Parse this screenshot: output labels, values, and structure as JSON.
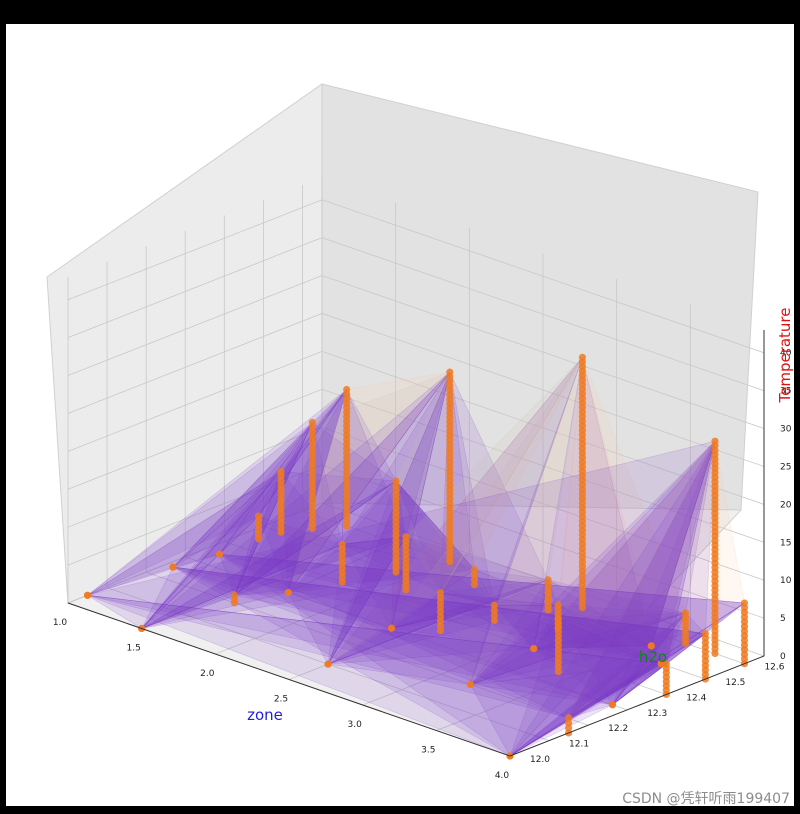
{
  "chart_data": {
    "type": "3d-scatter-surface",
    "x_axis": {
      "label": "zone",
      "ticks": [
        "1.0",
        "1.5",
        "2.0",
        "2.5",
        "3.0",
        "3.5",
        "4.0"
      ],
      "range": [
        1.0,
        4.0
      ],
      "color": "#1f1fdc"
    },
    "y_axis": {
      "label": "h2o",
      "ticks": [
        "12.0",
        "12.1",
        "12.2",
        "12.3",
        "12.4",
        "12.5",
        "12.6"
      ],
      "range": [
        12.0,
        12.65
      ],
      "color": "#0a8a0a"
    },
    "z_axis": {
      "label": "Temperature",
      "ticks": [
        "0",
        "5",
        "10",
        "15",
        "20",
        "25",
        "30",
        "35",
        "40"
      ],
      "range": [
        0,
        43
      ],
      "color": "#e01010"
    },
    "grid": true,
    "marker_color": "#f07a20",
    "surface_colors": [
      "#7a3cc8",
      "#f5c9a0",
      "#c7c0a8"
    ],
    "series": [
      {
        "values": [
          [
            1.0,
            12.05,
            0
          ],
          [
            1.05,
            12.25,
            0
          ],
          [
            1.1,
            12.35,
            0
          ],
          [
            1.1,
            12.45,
            3
          ],
          [
            1.12,
            12.5,
            8
          ],
          [
            1.2,
            12.55,
            14
          ],
          [
            1.3,
            12.6,
            18
          ],
          [
            1.5,
            12.0,
            0
          ],
          [
            1.6,
            12.2,
            1
          ],
          [
            1.7,
            12.3,
            0
          ],
          [
            1.8,
            12.4,
            5
          ],
          [
            1.9,
            12.5,
            12
          ],
          [
            2.0,
            12.6,
            25
          ],
          [
            2.1,
            12.45,
            7
          ],
          [
            2.3,
            12.55,
            2
          ],
          [
            2.4,
            12.3,
            0
          ],
          [
            2.5,
            12.1,
            0
          ],
          [
            2.6,
            12.35,
            5
          ],
          [
            2.7,
            12.45,
            2
          ],
          [
            2.8,
            12.55,
            4
          ],
          [
            2.9,
            12.6,
            33
          ],
          [
            3.0,
            12.5,
            3
          ],
          [
            3.1,
            12.4,
            0
          ],
          [
            3.2,
            12.2,
            0
          ],
          [
            3.4,
            12.35,
            7
          ],
          [
            3.5,
            12.55,
            0
          ],
          [
            3.6,
            12.6,
            4
          ],
          [
            3.7,
            12.5,
            0
          ],
          [
            3.8,
            12.6,
            28
          ],
          [
            3.9,
            12.3,
            0
          ],
          [
            4.0,
            12.0,
            0
          ],
          [
            4.0,
            12.15,
            2
          ],
          [
            4.0,
            12.4,
            4
          ],
          [
            4.0,
            12.5,
            6
          ],
          [
            4.0,
            12.6,
            8
          ]
        ]
      }
    ]
  },
  "watermark": "CSDN @凭轩听雨199407"
}
